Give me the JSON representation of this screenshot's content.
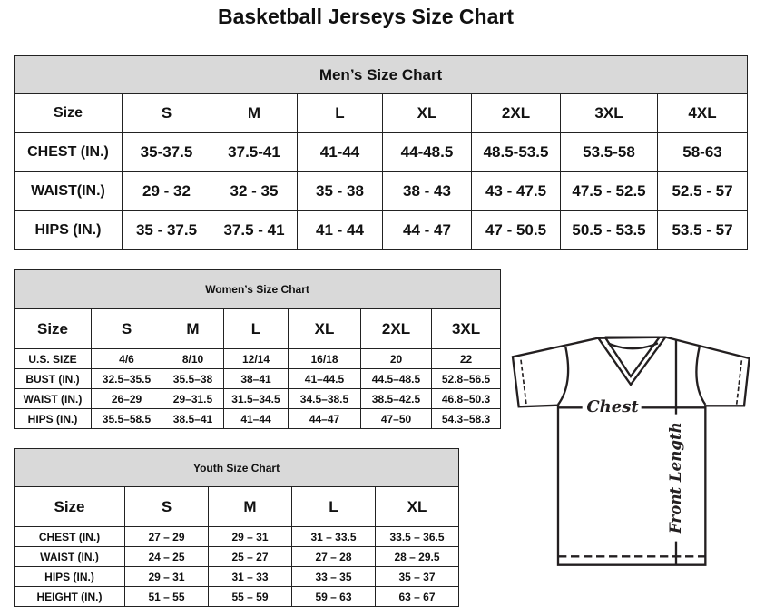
{
  "title": "Basketball Jerseys Size Chart",
  "men": {
    "heading": "Men’s Size Chart",
    "sizes": [
      "Size",
      "S",
      "M",
      "L",
      "XL",
      "2XL",
      "3XL",
      "4XL"
    ],
    "rows": [
      [
        "CHEST (IN.)",
        "35-37.5",
        "37.5-41",
        "41-44",
        "44-48.5",
        "48.5-53.5",
        "53.5-58",
        "58-63"
      ],
      [
        "WAIST(IN.)",
        "29 - 32",
        "32 - 35",
        "35 - 38",
        "38 - 43",
        "43 - 47.5",
        "47.5 - 52.5",
        "52.5 - 57"
      ],
      [
        "HIPS (IN.)",
        "35 - 37.5",
        "37.5 - 41",
        "41 - 44",
        "44 - 47",
        "47 - 50.5",
        "50.5 - 53.5",
        "53.5 - 57"
      ]
    ]
  },
  "women": {
    "heading": "Women’s Size Chart",
    "sizes": [
      "Size",
      "S",
      "M",
      "L",
      "XL",
      "2XL",
      "3XL"
    ],
    "rows": [
      [
        "U.S. SIZE",
        "4/6",
        "8/10",
        "12/14",
        "16/18",
        "20",
        "22"
      ],
      [
        "BUST (IN.)",
        "32.5–35.5",
        "35.5–38",
        "38–41",
        "41–44.5",
        "44.5–48.5",
        "52.8–56.5"
      ],
      [
        "WAIST (IN.)",
        "26–29",
        "29–31.5",
        "31.5–34.5",
        "34.5–38.5",
        "38.5–42.5",
        "46.8–50.3"
      ],
      [
        "HIPS (IN.)",
        "35.5–58.5",
        "38.5–41",
        "41–44",
        "44–47",
        "47–50",
        "54.3–58.3"
      ]
    ]
  },
  "youth": {
    "heading": "Youth Size Chart",
    "sizes": [
      "Size",
      "S",
      "M",
      "L",
      "XL"
    ],
    "rows": [
      [
        "CHEST (IN.)",
        "27 – 29",
        "29 – 31",
        "31 – 33.5",
        "33.5 – 36.5"
      ],
      [
        "WAIST (IN.)",
        "24 – 25",
        "25 – 27",
        "27 – 28",
        "28 – 29.5"
      ],
      [
        "HIPS (IN.)",
        "29 – 31",
        "31 – 33",
        "33 – 35",
        "35 – 37"
      ],
      [
        "HEIGHT (IN.)",
        "51 – 55",
        "55 – 59",
        "59 – 63",
        "63 – 67"
      ]
    ]
  },
  "diagram": {
    "chest_label": "Chest",
    "length_label": "Front Length"
  }
}
